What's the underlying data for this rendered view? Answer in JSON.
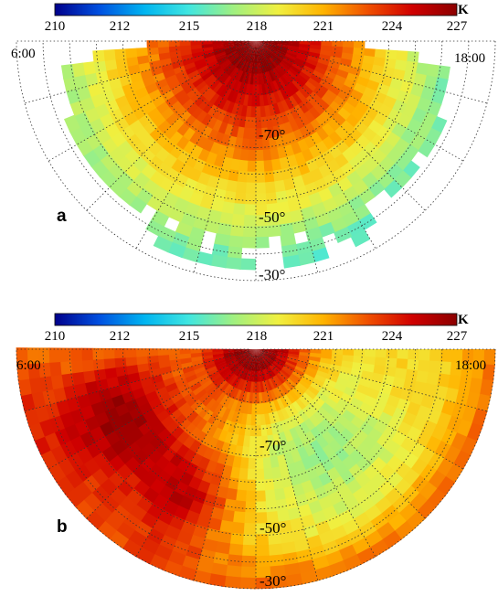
{
  "figure": {
    "colorbar": {
      "ticks": [
        "210",
        "212",
        "215",
        "218",
        "221",
        "224",
        "227"
      ],
      "unit": "K",
      "vmin": 210,
      "vmax": 227,
      "colors": [
        "#00008b",
        "#0050e0",
        "#00b4f0",
        "#40e6e0",
        "#a0f080",
        "#f0f040",
        "#ffb400",
        "#f05000",
        "#d00000",
        "#8b0000"
      ]
    },
    "time_labels": {
      "left": "6:00",
      "right": "18:00"
    },
    "lat_labels": [
      "-70°",
      "-50°",
      "-30°"
    ]
  },
  "panels": [
    {
      "label": "a",
      "ylabel": ""
    },
    {
      "label": "b",
      "ylabel": ""
    }
  ],
  "chart_data": [
    {
      "type": "heatmap",
      "title": "",
      "panel": "a",
      "coords": "polar, south pole at top center, local time 6:00 (left) to 18:00 (right) via 12:00 (bottom)",
      "value_range_K": [
        212,
        227
      ],
      "description_values": {
        "pole_max": 227,
        "lat_-70": 224,
        "lat_-50": 217,
        "lat_-30": 215
      }
    },
    {
      "type": "heatmap",
      "title": "",
      "panel": "b",
      "coords": "polar, south pole at top center, local time 6:00 (left) to 18:00 (right) via 12:00 (bottom)",
      "value_range_K": [
        216,
        227
      ],
      "description_values": {
        "pole_max": 227,
        "evening_max": 226,
        "morning_min": 217,
        "rim": 222
      }
    }
  ]
}
